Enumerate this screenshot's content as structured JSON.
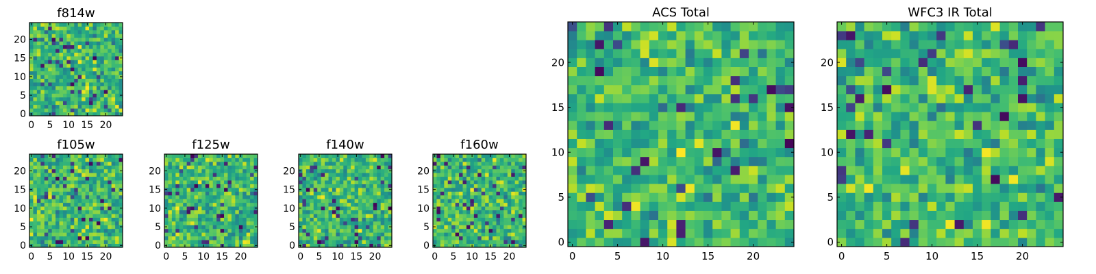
{
  "chart_data": [
    {
      "type": "heatmap",
      "title": "f814w",
      "shape": [
        25,
        25
      ],
      "xlim": [
        0,
        24
      ],
      "ylim": [
        0,
        24
      ],
      "xticks": [
        "0",
        "5",
        "10",
        "15",
        "20"
      ],
      "yticks": [
        "0",
        "5",
        "10",
        "15",
        "20"
      ],
      "colormap": "viridis",
      "seed": 11
    },
    {
      "type": "heatmap",
      "title": "f105w",
      "shape": [
        25,
        25
      ],
      "xlim": [
        0,
        24
      ],
      "ylim": [
        0,
        24
      ],
      "xticks": [
        "0",
        "5",
        "10",
        "15",
        "20"
      ],
      "yticks": [
        "0",
        "5",
        "10",
        "15",
        "20"
      ],
      "colormap": "viridis",
      "seed": 23
    },
    {
      "type": "heatmap",
      "title": "f125w",
      "shape": [
        25,
        25
      ],
      "xlim": [
        0,
        24
      ],
      "ylim": [
        0,
        24
      ],
      "xticks": [
        "0",
        "5",
        "10",
        "15",
        "20"
      ],
      "yticks": [
        "0",
        "5",
        "10",
        "15",
        "20"
      ],
      "colormap": "viridis",
      "seed": 37
    },
    {
      "type": "heatmap",
      "title": "f140w",
      "shape": [
        25,
        25
      ],
      "xlim": [
        0,
        24
      ],
      "ylim": [
        0,
        24
      ],
      "xticks": [
        "0",
        "5",
        "10",
        "15",
        "20"
      ],
      "yticks": [
        "0",
        "5",
        "10",
        "15",
        "20"
      ],
      "colormap": "viridis",
      "seed": 41
    },
    {
      "type": "heatmap",
      "title": "f160w",
      "shape": [
        25,
        25
      ],
      "xlim": [
        0,
        24
      ],
      "ylim": [
        0,
        24
      ],
      "xticks": [
        "0",
        "5",
        "10",
        "15",
        "20"
      ],
      "yticks": [
        "0",
        "5",
        "10",
        "15",
        "20"
      ],
      "colormap": "viridis",
      "seed": 53
    },
    {
      "type": "heatmap",
      "title": "ACS Total",
      "shape": [
        25,
        25
      ],
      "xlim": [
        0,
        24
      ],
      "ylim": [
        0,
        24
      ],
      "xticks": [
        "0",
        "5",
        "10",
        "15",
        "20"
      ],
      "yticks": [
        "0",
        "5",
        "10",
        "15",
        "20"
      ],
      "colormap": "viridis",
      "seed": 67
    },
    {
      "type": "heatmap",
      "title": "WFC3 IR Total",
      "shape": [
        25,
        25
      ],
      "xlim": [
        0,
        24
      ],
      "ylim": [
        0,
        24
      ],
      "xticks": [
        "0",
        "5",
        "10",
        "15",
        "20"
      ],
      "yticks": [
        "0",
        "5",
        "10",
        "15",
        "20"
      ],
      "colormap": "viridis",
      "seed": 79
    }
  ]
}
